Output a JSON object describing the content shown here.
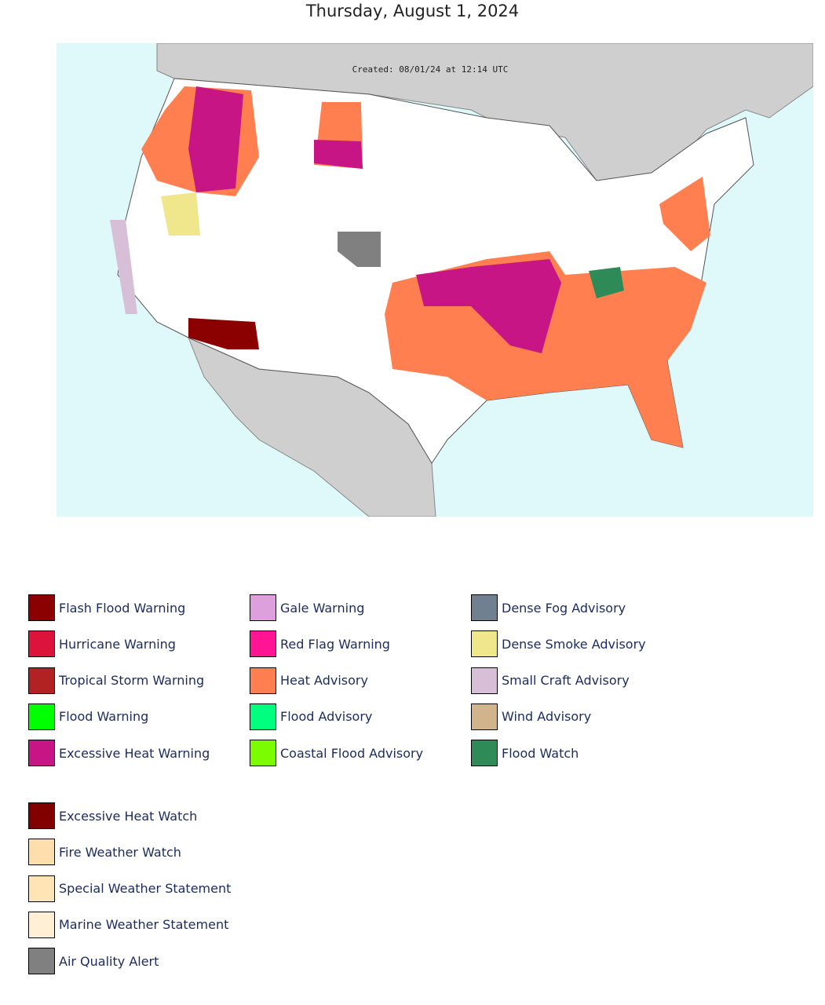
{
  "title": "Thursday, August 1, 2024",
  "map": {
    "created_label": "Created: 08/01/24 at 12:14 UTC"
  },
  "legend_primary": [
    {
      "label": "Flash Flood Warning",
      "color": "#8b0000"
    },
    {
      "label": "Hurricane Warning",
      "color": "#dc143c"
    },
    {
      "label": "Tropical Storm Warning",
      "color": "#b22222"
    },
    {
      "label": "Flood Warning",
      "color": "#00ff00"
    },
    {
      "label": "Excessive Heat Warning",
      "color": "#c71585"
    },
    {
      "label": "Gale Warning",
      "color": "#dda0dd"
    },
    {
      "label": "Red Flag Warning",
      "color": "#ff1493"
    },
    {
      "label": "Heat Advisory",
      "color": "#ff7f50"
    },
    {
      "label": "Flood Advisory",
      "color": "#00ff7f"
    },
    {
      "label": "Coastal Flood Advisory",
      "color": "#7cfc00"
    },
    {
      "label": "Dense Fog Advisory",
      "color": "#708090"
    },
    {
      "label": "Dense Smoke Advisory",
      "color": "#f0e68c"
    },
    {
      "label": "Small Craft Advisory",
      "color": "#d8bfd8"
    },
    {
      "label": "Wind Advisory",
      "color": "#d2b48c"
    },
    {
      "label": "Flood Watch",
      "color": "#2e8b57"
    }
  ],
  "legend_secondary": [
    {
      "label": "Excessive Heat Watch",
      "color": "#800000"
    },
    {
      "label": "Fire Weather Watch",
      "color": "#ffdead"
    },
    {
      "label": "Special Weather Statement",
      "color": "#ffe4b5"
    },
    {
      "label": "Marine Weather Statement",
      "color": "#ffefd5"
    },
    {
      "label": "Air Quality Alert",
      "color": "#808080"
    }
  ]
}
